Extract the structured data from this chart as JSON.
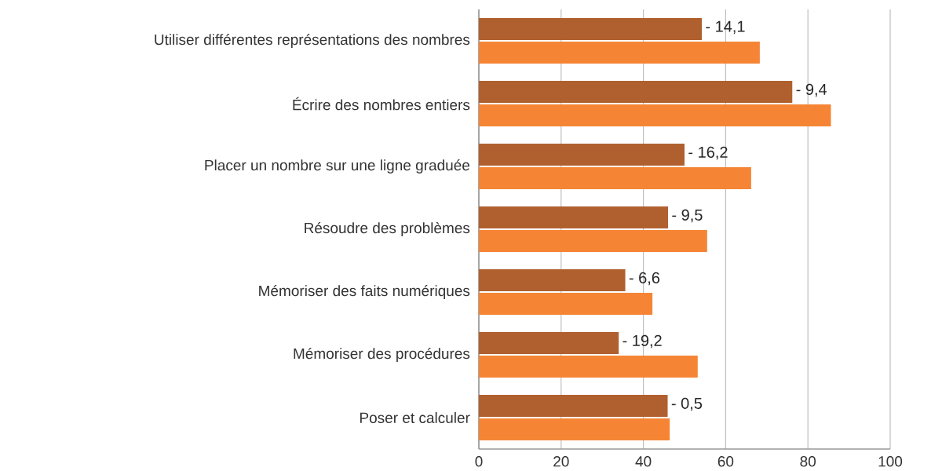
{
  "chart_data": {
    "type": "bar",
    "orientation": "horizontal",
    "categories": [
      "Utiliser différentes représentations des nombres",
      "Écrire des nombres entiers",
      "Placer un nombre sur une ligne graduée",
      "Résoudre des problèmes",
      "Mémoriser des faits numériques",
      "Mémoriser des procédures",
      "Poser et calculer"
    ],
    "series": [
      {
        "color": "#b0602e",
        "values": [
          54.2,
          76.2,
          50.0,
          46.0,
          35.6,
          34.0,
          45.9
        ]
      },
      {
        "color": "#f58535",
        "values": [
          68.3,
          85.6,
          66.2,
          55.5,
          42.2,
          53.2,
          46.4
        ]
      }
    ],
    "annotations": [
      {
        "text": "- 14,1",
        "x": 54.2,
        "y": "Utiliser différentes représentations des nombres"
      },
      {
        "text": "- 9,4",
        "x": 76.2,
        "y": "Écrire des nombres entiers"
      },
      {
        "text": "- 16,2",
        "x": 50.0,
        "y": "Placer un nombre sur une ligne graduée"
      },
      {
        "text": "- 9,5",
        "x": 46.0,
        "y": "Résoudre des problèmes"
      },
      {
        "text": "- 6,6",
        "x": 35.6,
        "y": "Mémoriser des faits numériques"
      },
      {
        "text": "- 19,2",
        "x": 34.0,
        "y": "Mémoriser des procédures"
      },
      {
        "text": "- 0,5",
        "x": 45.9,
        "y": "Poser et calculer"
      }
    ],
    "xlim": [
      0,
      100
    ],
    "xticks": [
      0,
      20,
      40,
      60,
      80,
      100
    ],
    "grid": "x"
  }
}
